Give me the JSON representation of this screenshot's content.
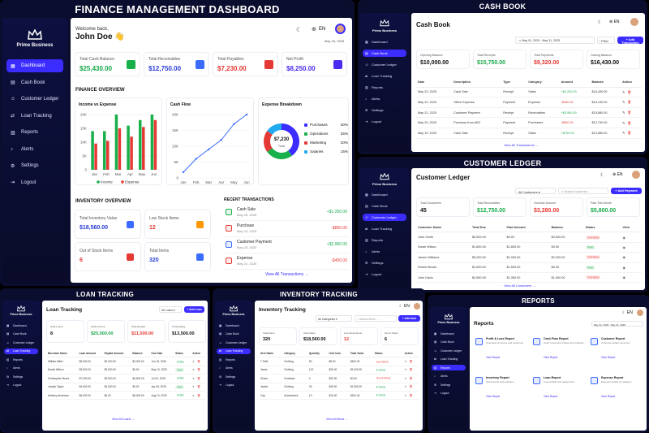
{
  "dashboard": {
    "title": "FINANCE MANAGEMENT DASHBOARD",
    "brand": "Prime Business",
    "nav": [
      "Dashboard",
      "Cash Book",
      "Customer Ledger",
      "Loan Tracking",
      "Reports",
      "Alerts",
      "Settings",
      "Logout"
    ],
    "welcome": "Welcome back,",
    "user": "John Doe 👋",
    "lang": "EN",
    "date": "May 26, 2025",
    "stats": [
      {
        "label": "Total Cash Balance",
        "value": "$25,430.00"
      },
      {
        "label": "Total Receivables",
        "value": "$12,750.00"
      },
      {
        "label": "Total Payables",
        "value": "$7,230.00"
      },
      {
        "label": "Net Profit",
        "value": "$8,250.00"
      }
    ],
    "finance_overview": "FINANCE OVERVIEW",
    "ie_title": "Income vs Expense",
    "cf_title": "Cash Flow",
    "eb_title": "Expense Breakdown",
    "donut_value": "$7,230",
    "donut_label": "Total",
    "breakdown": [
      {
        "name": "Purchases",
        "pct": "40%",
        "color": "#3b2cff"
      },
      {
        "name": "Operations",
        "pct": "25%",
        "color": "#18b04a"
      },
      {
        "name": "Marketing",
        "pct": "20%",
        "color": "#e53935"
      },
      {
        "name": "Salaries",
        "pct": "15%",
        "color": "#22aaee"
      }
    ],
    "legend_income": "Income",
    "legend_expense": "Expense",
    "inventory_overview": "INVENTORY OVERVIEW",
    "inv": [
      {
        "label": "Total Inventory Value",
        "value": "$18,560.00"
      },
      {
        "label": "Low Stock Items",
        "value": "12"
      },
      {
        "label": "Out of Stock Items",
        "value": "6"
      },
      {
        "label": "Total Items",
        "value": "320"
      }
    ],
    "recent": "RECENT TRANSACTIONS",
    "tx": [
      {
        "name": "Cash Sale",
        "date": "May 25, 2025",
        "amt": "+$1,200.00"
      },
      {
        "name": "Purchase",
        "date": "May 24, 2025",
        "amt": "-$850.00"
      },
      {
        "name": "Customer Payment",
        "date": "May 23, 2025",
        "amt": "+$2,950.00"
      },
      {
        "name": "Expense",
        "date": "May 22, 2025",
        "amt": "-$450.00"
      }
    ],
    "view_all": "View All Transactions"
  },
  "chart_data": [
    {
      "type": "bar",
      "title": "Income vs Expense",
      "categories": [
        "Jan",
        "Feb",
        "Mar",
        "Apr",
        "May",
        "Jun"
      ],
      "series": [
        {
          "name": "Income",
          "values": [
            14000,
            14000,
            20000,
            16000,
            18000,
            20000
          ]
        },
        {
          "name": "Expense",
          "values": [
            9500,
            10500,
            15000,
            12000,
            15500,
            18000
          ]
        }
      ],
      "ylim": [
        0,
        20000
      ],
      "yticks": [
        "0",
        "5K",
        "10K",
        "15K",
        "20K"
      ]
    },
    {
      "type": "line",
      "title": "Cash Flow",
      "categories": [
        "Jan",
        "Feb",
        "Mar",
        "Apr",
        "May",
        "Jun"
      ],
      "values": [
        1800,
        6000,
        9000,
        12000,
        17000,
        20000
      ],
      "ylim": [
        0,
        20000
      ],
      "yticks": [
        "0",
        "5K",
        "10K",
        "15K",
        "20K"
      ]
    },
    {
      "type": "pie",
      "title": "Expense Breakdown",
      "categories": [
        "Purchases",
        "Operations",
        "Marketing",
        "Salaries"
      ],
      "values": [
        40,
        25,
        20,
        15
      ]
    }
  ],
  "cashbook": {
    "title": "CASH BOOK",
    "heading": "Cash Book",
    "range": "May 01, 2025 - May 31, 2025",
    "filter": "Filter",
    "add": "+ Add Transaction",
    "stats": [
      {
        "label": "Opening Balance",
        "value": "$10,000.00"
      },
      {
        "label": "Total Receipts",
        "value": "$15,750.00"
      },
      {
        "label": "Total Payments",
        "value": "$9,320.00"
      },
      {
        "label": "Closing Balance",
        "value": "$16,430.00"
      }
    ],
    "cols": [
      "Date",
      "Description",
      "Type",
      "Category",
      "Amount",
      "Balance",
      "Action"
    ],
    "rows": [
      [
        "May 23, 2025",
        "Cash Sale",
        "Receipt",
        "Sales",
        "+$1,200.00",
        "$16,430.00"
      ],
      [
        "May 22, 2025",
        "Office Expense",
        "Payment",
        "Expense",
        "-$450.00",
        "$15,190.00"
      ],
      [
        "May 21, 2025",
        "Customer Payment",
        "Receipt",
        "Receivables",
        "+$2,950.00",
        "$15,680.00"
      ],
      [
        "May 20, 2025",
        "Purchase from ABC",
        "Payment",
        "Purchases",
        "-$850.00",
        "$12,730.00"
      ],
      [
        "May 19, 2025",
        "Cash Sale",
        "Receipt",
        "Sales",
        "+$700.00",
        "$13,580.00"
      ]
    ],
    "view_all": "View All Transactions"
  },
  "ledger": {
    "title": "CUSTOMER LEDGER",
    "heading": "Customer Ledger",
    "filter": "All Customers",
    "search": "Search customer...",
    "add": "+ Add Payment",
    "stats": [
      {
        "label": "Total Customers",
        "value": "45"
      },
      {
        "label": "Total Receivables",
        "value": "$12,750.00"
      },
      {
        "label": "Overdue Amount",
        "value": "$3,280.00"
      },
      {
        "label": "Paid This Month",
        "value": "$5,800.00"
      }
    ],
    "cols": [
      "Customer Name",
      "Total Due",
      "Paid Amount",
      "Balance",
      "Status",
      "View"
    ],
    "rows": [
      [
        "John Smith",
        "$2,500.00",
        "$0.00",
        "$2,500.00",
        "Overdue"
      ],
      [
        "Sarah Wilson",
        "$1,800.00",
        "$1,800.00",
        "$0.00",
        "Paid"
      ],
      [
        "James Williams",
        "$3,200.00",
        "$1,000.00",
        "$2,200.00",
        "Overdue"
      ],
      [
        "Robert Brown",
        "$1,500.00",
        "$1,500.00",
        "$0.00",
        "Paid"
      ],
      [
        "John Davis",
        "$2,850.00",
        "$1,350.00",
        "$1,500.00",
        "Overdue"
      ]
    ],
    "view_all": "View All Customers"
  },
  "loan": {
    "title": "LOAN TRACKING",
    "heading": "Loan Tracking",
    "filter": "All Loans",
    "add": "+ Add Loan",
    "stats": [
      {
        "label": "Total Loans",
        "value": "8"
      },
      {
        "label": "Total Amount",
        "value": "$25,000.00"
      },
      {
        "label": "Total Repaid",
        "value": "$11,500.00"
      },
      {
        "label": "Outstanding",
        "value": "$13,500.00"
      }
    ],
    "cols": [
      "Borrower Name",
      "Loan Amount",
      "Repaid Amount",
      "Balance",
      "Due Date",
      "Status",
      "Action"
    ],
    "rows": [
      [
        "William Miller",
        "$5,000.00",
        "$2,000.00",
        "$3,000.00",
        "Jun 15, 2025",
        "Active"
      ],
      [
        "Daniel Wilson",
        "$3,000.00",
        "$3,000.00",
        "$0.00",
        "May 10, 2025",
        "Paid"
      ],
      [
        "Christopher Moore",
        "$7,000.00",
        "$2,500.00",
        "$4,500.00",
        "Jul 20, 2025",
        "Active"
      ],
      [
        "Joseph Taylor",
        "$4,000.00",
        "$4,000.00",
        "$0.00",
        "Apr 05, 2025",
        "Paid"
      ],
      [
        "Anthony Anderson",
        "$6,000.00",
        "$0.00",
        "$6,000.00",
        "Aug 10, 2025",
        "Active"
      ]
    ],
    "view_all": "View All Loans"
  },
  "inventory": {
    "title": "INVENTORY TRACKING",
    "heading": "Inventory Tracking",
    "filter": "All Categories",
    "search": "Search items...",
    "add": "+ Add Item",
    "stats": [
      {
        "label": "Total Items",
        "value": "320"
      },
      {
        "label": "Total Value",
        "value": "$18,560.00"
      },
      {
        "label": "Low Stock Items",
        "value": "12"
      },
      {
        "label": "Out of Stock",
        "value": "6"
      }
    ],
    "cols": [
      "Item Name",
      "Category",
      "Quantity",
      "Unit Cost",
      "Total Value",
      "Status",
      "Action"
    ],
    "rows": [
      [
        "T-Shirt",
        "Clothing",
        "50",
        "$8.00",
        "$400.00",
        "Low Stock"
      ],
      [
        "Jeans",
        "Clothing",
        "120",
        "$20.00",
        "$2,400.00",
        "In Stock"
      ],
      [
        "Shoes",
        "Footwear",
        "0",
        "$30.00",
        "$0.00",
        "Out of Stock"
      ],
      [
        "Jacket",
        "Clothing",
        "30",
        "$45.00",
        "$1,350.00",
        "In Stock"
      ],
      [
        "Cap",
        "Accessories",
        "10",
        "$10.00",
        "$100.00",
        "In Stock"
      ]
    ],
    "view_all": "View All Items"
  },
  "reports": {
    "title": "REPORTS",
    "heading": "Reports",
    "range": "May 01, 2025 - May 31, 2025",
    "items": [
      {
        "name": "Profit & Loss Report",
        "desc": "Overview of income and expenses",
        "link": "View Report"
      },
      {
        "name": "Cash Flow Report",
        "desc": "Cash movement inflows and outflows",
        "link": "View Report"
      },
      {
        "name": "Customer Report",
        "desc": "Customer ledger summary",
        "link": "View Report"
      },
      {
        "name": "Inventory Report",
        "desc": "Stock levels and valuation",
        "link": "View Report"
      },
      {
        "name": "Loan Report",
        "desc": "Loan details and repayments",
        "link": "View Report"
      },
      {
        "name": "Expense Report",
        "desc": "Expense details by category",
        "link": "View Report"
      }
    ]
  }
}
